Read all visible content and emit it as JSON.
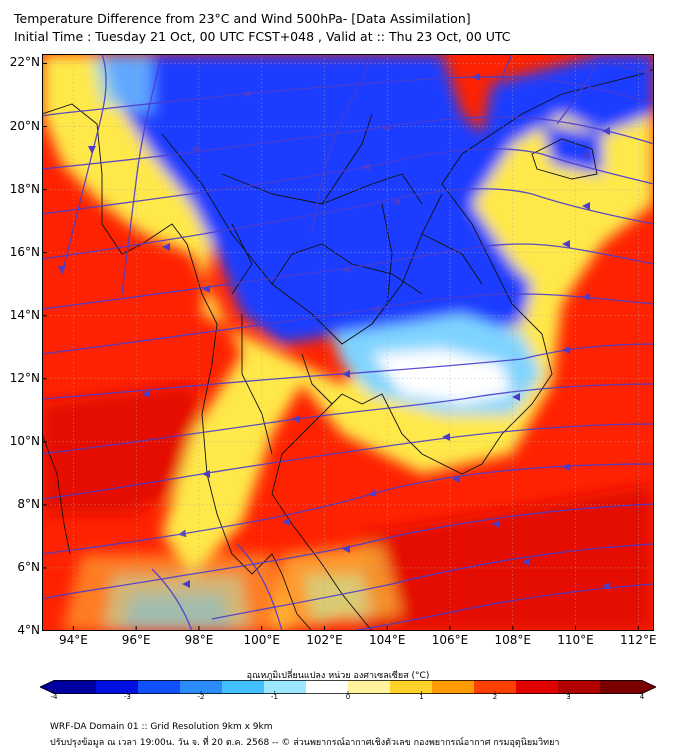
{
  "header": {
    "title": "Temperature Difference from 23°C and Wind 500hPa- [Data Assimilation]",
    "subtitle": "Initial Time : Tuesday 21 Oct, 00 UTC FCST+048 , Valid at ::  Thu 23 Oct, 00 UTC"
  },
  "map": {
    "lat_ticks": [
      22,
      20,
      18,
      16,
      14,
      12,
      10,
      8,
      6,
      4
    ],
    "lat_labels": [
      "22°N",
      "20°N",
      "18°N",
      "16°N",
      "14°N",
      "12°N",
      "10°N",
      "8°N",
      "6°N",
      "4°N"
    ],
    "lon_ticks": [
      94,
      96,
      98,
      100,
      102,
      104,
      106,
      108,
      110,
      112
    ],
    "lon_labels": [
      "94°E",
      "96°E",
      "98°E",
      "100°E",
      "102°E",
      "104°E",
      "106°E",
      "108°E",
      "110°E",
      "112°E"
    ],
    "extent": {
      "lon_min": 93,
      "lon_max": 112.5,
      "lat_min": 4,
      "lat_max": 22.3
    },
    "colors": {
      "warm_bg": "#ff2200",
      "deep_warm": "#e00000",
      "cold": "#1a3cff",
      "light_blue": "#7fd4ff",
      "yellow": "#ffee55",
      "streamline": "#4b3ccc",
      "coast": "#111111"
    }
  },
  "colorbar": {
    "title": "อุณหภูมิเปลี่ยนแปลง หน่วย องศาเซลเซียส (°C)",
    "ticks": [
      -4,
      -3,
      -2,
      -1,
      0,
      1,
      2,
      3,
      4
    ],
    "tick_labels": [
      "-4",
      "-3",
      "-2",
      "-1",
      "0",
      "1",
      "2",
      "3",
      "4"
    ],
    "colors": [
      "#0000a0",
      "#0010e0",
      "#1050ff",
      "#2a8cff",
      "#45c0ff",
      "#9de6ff",
      "#ffffff",
      "#fff3a0",
      "#ffd22a",
      "#ff9a00",
      "#ff4000",
      "#e00000",
      "#b00000",
      "#7a0000"
    ]
  },
  "footer": {
    "line1": "WRF-DA Domain 01 :: Grid Resolution 9km x 9km",
    "line2": "ปรับปรุงข้อมูล ณ เวลา 19:00น. วัน จ. ที่ 20 ต.ค. 2568 -- © ส่วนพยากรณ์อากาศเชิงตัวเลข กองพยากรณ์อากาศ กรมอุตุนิยมวิทยา"
  }
}
